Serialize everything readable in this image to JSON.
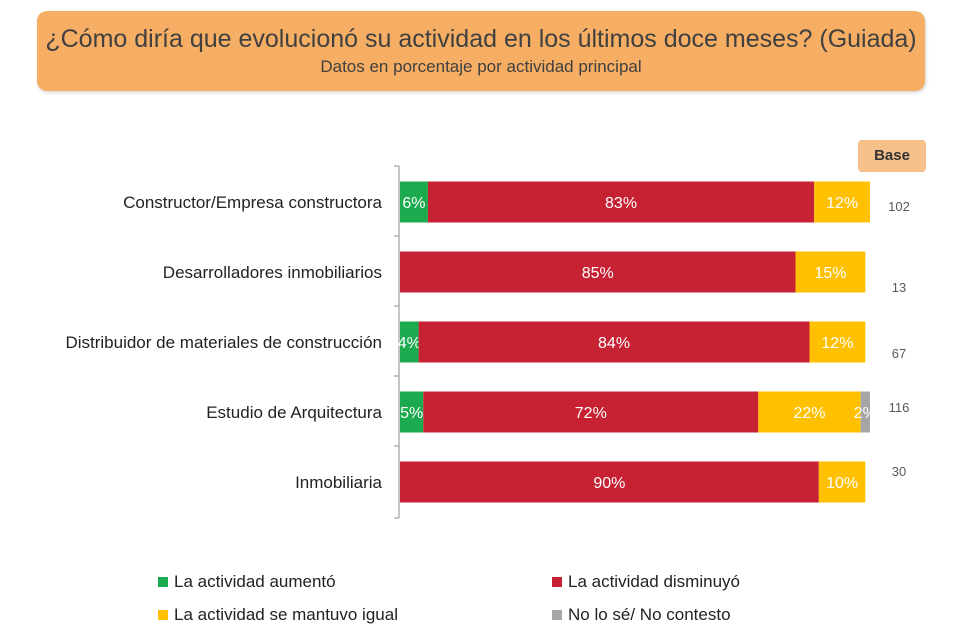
{
  "header": {
    "title": "¿Cómo diría que evolucionó su actividad en los últimos doce meses? (Guiada)",
    "subtitle": "Datos en porcentaje por actividad principal"
  },
  "base": {
    "label": "Base",
    "values": [
      "102",
      "13",
      "67",
      "116",
      "30"
    ]
  },
  "chart_data": {
    "type": "bar",
    "orientation": "horizontal",
    "stacked": true,
    "categories": [
      "Constructor/Empresa constructora",
      "Desarrolladores inmobiliarios",
      "Distribuidor de materiales de construcción",
      "Estudio de Arquitectura",
      "Inmobiliaria"
    ],
    "series": [
      {
        "name": "La actividad aumentó",
        "color": "#1BAA4E",
        "values": [
          6,
          0,
          4,
          5,
          0
        ]
      },
      {
        "name": "La actividad disminuyó",
        "color": "#C62233",
        "values": [
          83,
          85,
          84,
          72,
          90
        ]
      },
      {
        "name": "La actividad se mantuvo igual",
        "color": "#FFC000",
        "values": [
          12,
          15,
          12,
          22,
          10
        ]
      },
      {
        "name": "No lo sé/ No contesto",
        "color": "#A6A6A6",
        "values": [
          0,
          0,
          0,
          2,
          0
        ]
      }
    ],
    "value_suffix": "%",
    "xlim": [
      0,
      101
    ],
    "grid": false,
    "legend_position": "bottom"
  }
}
